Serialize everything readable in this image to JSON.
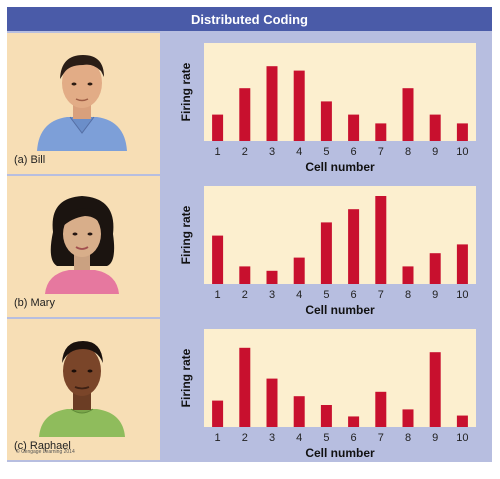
{
  "title": "Distributed Coding",
  "copyright": "© Cengage Learning 2014",
  "colors": {
    "bar": "#c8102e",
    "plot_bg": "#fcefcf",
    "title_bar": "#4a5ba8"
  },
  "rows": [
    {
      "caption": "(a) Bill",
      "portrait_icon": "man-portrait-icon"
    },
    {
      "caption": "(b) Mary",
      "portrait_icon": "woman-portrait-icon"
    },
    {
      "caption": "(c) Raphael",
      "portrait_icon": "young-man-portrait-icon"
    }
  ],
  "chart_data": [
    {
      "type": "bar",
      "xlabel": "Cell number",
      "ylabel": "Firing rate",
      "categories": [
        "1",
        "2",
        "3",
        "4",
        "5",
        "6",
        "7",
        "8",
        "9",
        "10"
      ],
      "values": [
        3,
        6,
        8.5,
        8,
        4.5,
        3,
        2,
        6,
        3,
        2
      ],
      "ylim": [
        0,
        10
      ]
    },
    {
      "type": "bar",
      "xlabel": "Cell number",
      "ylabel": "Firing rate",
      "categories": [
        "1",
        "2",
        "3",
        "4",
        "5",
        "6",
        "7",
        "8",
        "9",
        "10"
      ],
      "values": [
        5.5,
        2,
        1.5,
        3,
        7,
        8.5,
        10,
        2,
        3.5,
        4.5
      ],
      "ylim": [
        0,
        10
      ]
    },
    {
      "type": "bar",
      "xlabel": "Cell number",
      "ylabel": "Firing rate",
      "categories": [
        "1",
        "2",
        "3",
        "4",
        "5",
        "6",
        "7",
        "8",
        "9",
        "10"
      ],
      "values": [
        3,
        9,
        5.5,
        3.5,
        2.5,
        1.2,
        4,
        2,
        8.5,
        1.3
      ],
      "ylim": [
        0,
        10
      ]
    }
  ]
}
